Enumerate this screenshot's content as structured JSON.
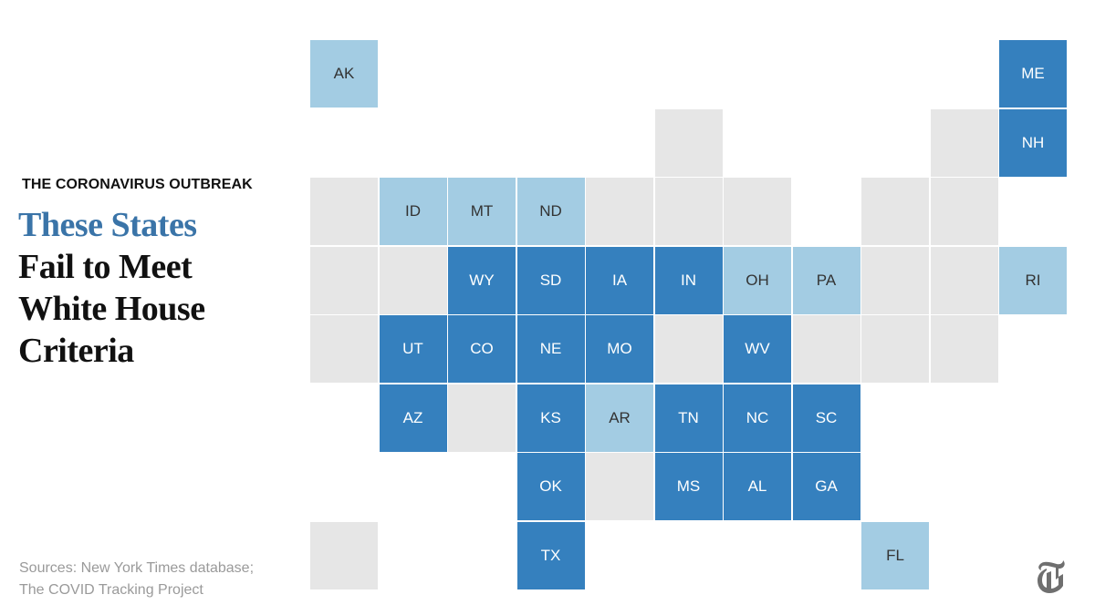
{
  "kicker": "THE CORONAVIRUS OUTBREAK",
  "headline": {
    "line1": "These States",
    "line2": "Fail to Meet",
    "line3": "White House",
    "line4": "Criteria"
  },
  "sources": {
    "line1": "Sources: New York Times database;",
    "line2": "The COVID Tracking Project"
  },
  "colors": {
    "dark": "#3580be",
    "light": "#a3cce3",
    "empty": "#e6e6e6",
    "dark_text": "#ffffff",
    "light_text": "#333333",
    "headline_accent": "#3a74a8"
  },
  "map": {
    "tiles": [
      {
        "row": 0,
        "col": 0,
        "label": "AK",
        "status": "light"
      },
      {
        "row": 0,
        "col": 10,
        "label": "ME",
        "status": "dark"
      },
      {
        "row": 1,
        "col": 5,
        "label": "",
        "status": "empty"
      },
      {
        "row": 1,
        "col": 9,
        "label": "",
        "status": "empty"
      },
      {
        "row": 1,
        "col": 10,
        "label": "NH",
        "status": "dark"
      },
      {
        "row": 2,
        "col": 0,
        "label": "",
        "status": "empty"
      },
      {
        "row": 2,
        "col": 1,
        "label": "ID",
        "status": "light"
      },
      {
        "row": 2,
        "col": 2,
        "label": "MT",
        "status": "light"
      },
      {
        "row": 2,
        "col": 3,
        "label": "ND",
        "status": "light"
      },
      {
        "row": 2,
        "col": 4,
        "label": "",
        "status": "empty"
      },
      {
        "row": 2,
        "col": 5,
        "label": "",
        "status": "empty"
      },
      {
        "row": 2,
        "col": 6,
        "label": "",
        "status": "empty"
      },
      {
        "row": 2,
        "col": 8,
        "label": "",
        "status": "empty"
      },
      {
        "row": 2,
        "col": 9,
        "label": "",
        "status": "empty"
      },
      {
        "row": 3,
        "col": 0,
        "label": "",
        "status": "empty"
      },
      {
        "row": 3,
        "col": 1,
        "label": "",
        "status": "empty"
      },
      {
        "row": 3,
        "col": 2,
        "label": "WY",
        "status": "dark"
      },
      {
        "row": 3,
        "col": 3,
        "label": "SD",
        "status": "dark"
      },
      {
        "row": 3,
        "col": 4,
        "label": "IA",
        "status": "dark"
      },
      {
        "row": 3,
        "col": 5,
        "label": "IN",
        "status": "dark"
      },
      {
        "row": 3,
        "col": 6,
        "label": "OH",
        "status": "light"
      },
      {
        "row": 3,
        "col": 7,
        "label": "PA",
        "status": "light"
      },
      {
        "row": 3,
        "col": 8,
        "label": "",
        "status": "empty"
      },
      {
        "row": 3,
        "col": 9,
        "label": "",
        "status": "empty"
      },
      {
        "row": 3,
        "col": 10,
        "label": "RI",
        "status": "light"
      },
      {
        "row": 4,
        "col": 0,
        "label": "",
        "status": "empty"
      },
      {
        "row": 4,
        "col": 1,
        "label": "UT",
        "status": "dark"
      },
      {
        "row": 4,
        "col": 2,
        "label": "CO",
        "status": "dark"
      },
      {
        "row": 4,
        "col": 3,
        "label": "NE",
        "status": "dark"
      },
      {
        "row": 4,
        "col": 4,
        "label": "MO",
        "status": "dark"
      },
      {
        "row": 4,
        "col": 5,
        "label": "",
        "status": "empty"
      },
      {
        "row": 4,
        "col": 6,
        "label": "WV",
        "status": "dark"
      },
      {
        "row": 4,
        "col": 7,
        "label": "",
        "status": "empty"
      },
      {
        "row": 4,
        "col": 8,
        "label": "",
        "status": "empty"
      },
      {
        "row": 4,
        "col": 9,
        "label": "",
        "status": "empty"
      },
      {
        "row": 5,
        "col": 1,
        "label": "AZ",
        "status": "dark"
      },
      {
        "row": 5,
        "col": 2,
        "label": "",
        "status": "empty"
      },
      {
        "row": 5,
        "col": 3,
        "label": "KS",
        "status": "dark"
      },
      {
        "row": 5,
        "col": 4,
        "label": "AR",
        "status": "light"
      },
      {
        "row": 5,
        "col": 5,
        "label": "TN",
        "status": "dark"
      },
      {
        "row": 5,
        "col": 6,
        "label": "NC",
        "status": "dark"
      },
      {
        "row": 5,
        "col": 7,
        "label": "SC",
        "status": "dark"
      },
      {
        "row": 6,
        "col": 3,
        "label": "OK",
        "status": "dark"
      },
      {
        "row": 6,
        "col": 4,
        "label": "",
        "status": "empty"
      },
      {
        "row": 6,
        "col": 5,
        "label": "MS",
        "status": "dark"
      },
      {
        "row": 6,
        "col": 6,
        "label": "AL",
        "status": "dark"
      },
      {
        "row": 6,
        "col": 7,
        "label": "GA",
        "status": "dark"
      },
      {
        "row": 7,
        "col": 0,
        "label": "",
        "status": "empty"
      },
      {
        "row": 7,
        "col": 3,
        "label": "TX",
        "status": "dark"
      },
      {
        "row": 7,
        "col": 8,
        "label": "FL",
        "status": "light"
      }
    ]
  },
  "logo_icon": "nyt-t-logo"
}
